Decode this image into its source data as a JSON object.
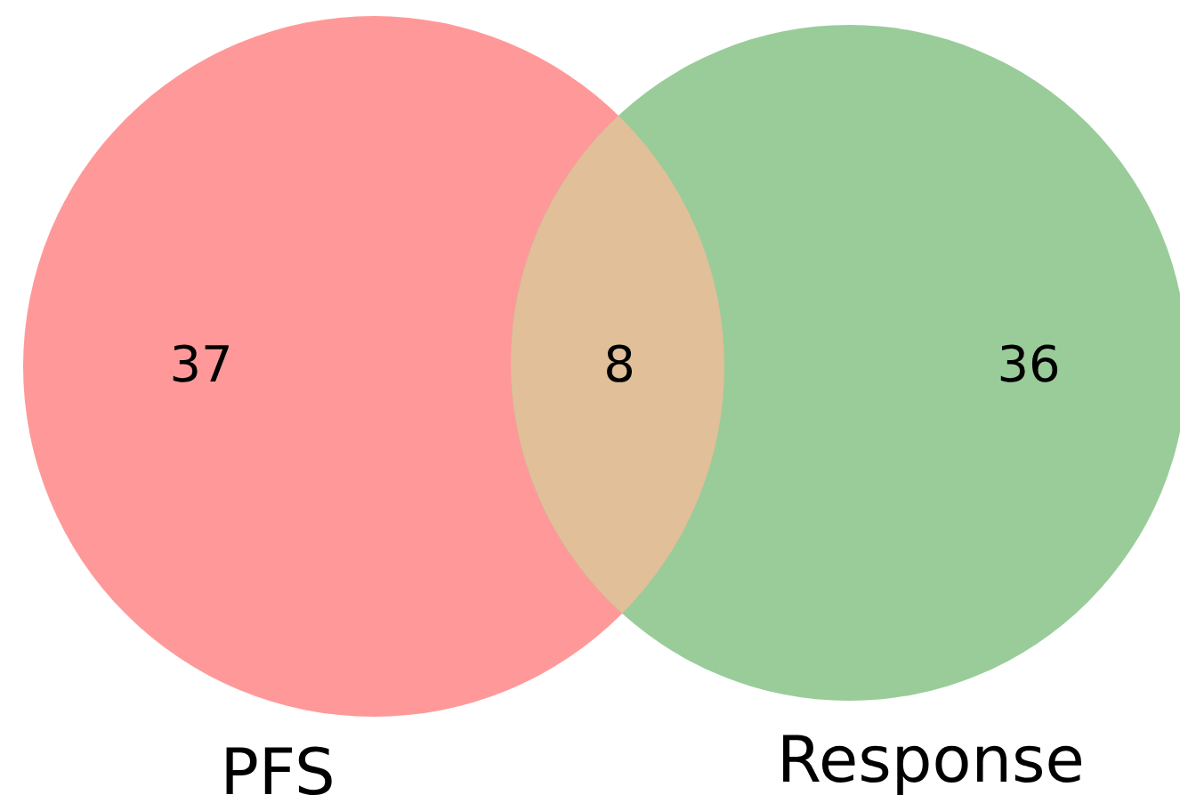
{
  "chart_data": {
    "type": "other",
    "categories": [
      "PFS",
      null,
      "Response"
    ],
    "values": [
      37,
      8,
      36
    ],
    "colors": [
      "#ff9999",
      "#e0bf99",
      "#99cc99"
    ],
    "data_labels": true
  }
}
